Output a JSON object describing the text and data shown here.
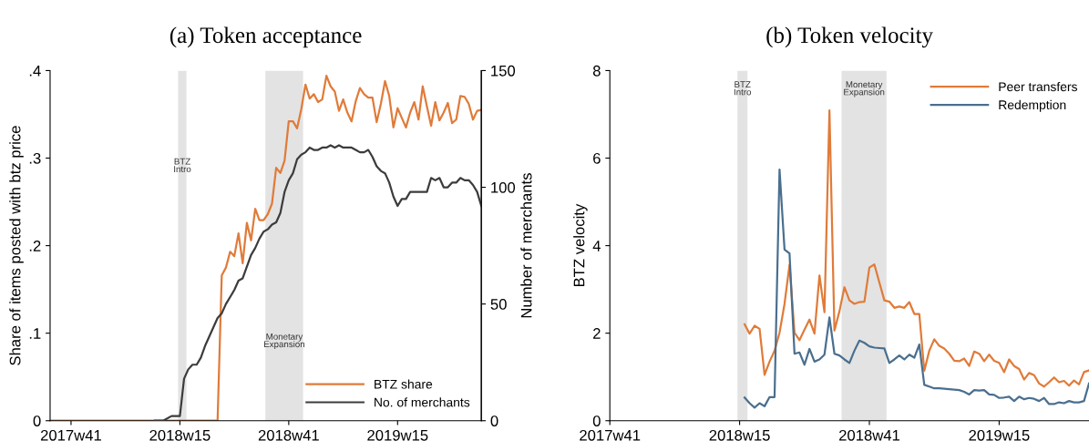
{
  "chart_data": [
    {
      "type": "line",
      "title": "(a) Token acceptance",
      "ylabel": "Share of items posted with btz price",
      "y2label": "Number of merchants",
      "xlim": [
        "2017-09-04",
        "2019-08-26"
      ],
      "xticks": [
        {
          "value": "2017-10-09",
          "label": "2017w41"
        },
        {
          "value": "2018-04-09",
          "label": "2018w15"
        },
        {
          "value": "2018-10-08",
          "label": "2018w41"
        },
        {
          "value": "2019-04-08",
          "label": "2019w15"
        }
      ],
      "ylim": [
        0,
        0.4
      ],
      "yticks": [
        0,
        {
          "value": 0.1,
          "label": ".1"
        },
        {
          "value": 0.2,
          "label": ".2"
        },
        {
          "value": 0.3,
          "label": ".3"
        },
        {
          "value": 0.4,
          "label": ".4"
        }
      ],
      "y2lim": [
        0,
        150
      ],
      "y2ticks": [
        0,
        50,
        100,
        150
      ],
      "legend": "bottom right",
      "bands": [
        {
          "axis": "x",
          "from": "2018-04-06",
          "to": "2018-04-20",
          "color": "#e3e3e3",
          "label": "BTZ\nIntro"
        },
        {
          "axis": "x",
          "from": "2018-08-30",
          "to": "2018-11-01",
          "color": "#e3e3e3",
          "label": "Monetary\nExpansion"
        }
      ],
      "series": [
        {
          "name": "BTZ share",
          "color": "#e07b39",
          "x": [
            "2017-09-04",
            "2018-06-11",
            "2018-06-18",
            "2018-06-25",
            "2018-07-02",
            "2018-07-09",
            "2018-07-16",
            "2018-07-23",
            "2018-07-30",
            "2018-08-06",
            "2018-08-13",
            "2018-08-20",
            "2018-08-27",
            "2018-09-03",
            "2018-09-10",
            "2018-09-17",
            "2018-09-24",
            "2018-10-01",
            "2018-10-08",
            "2018-10-15",
            "2018-10-22",
            "2018-10-29",
            "2018-11-05",
            "2018-11-12",
            "2018-11-19",
            "2018-11-26",
            "2018-12-03",
            "2018-12-10",
            "2018-12-17",
            "2018-12-24",
            "2018-12-31",
            "2019-01-07",
            "2019-01-14",
            "2019-01-21",
            "2019-01-28",
            "2019-02-04",
            "2019-02-11",
            "2019-02-18",
            "2019-02-25",
            "2019-03-04",
            "2019-03-11",
            "2019-03-18",
            "2019-03-25",
            "2019-04-01",
            "2019-04-08",
            "2019-04-15",
            "2019-04-22",
            "2019-04-29",
            "2019-05-06",
            "2019-05-13",
            "2019-05-20",
            "2019-05-27",
            "2019-06-03",
            "2019-06-10",
            "2019-06-17",
            "2019-06-24",
            "2019-07-01",
            "2019-07-08",
            "2019-07-15",
            "2019-07-22",
            "2019-07-29",
            "2019-08-05",
            "2019-08-12",
            "2019-08-19",
            "2019-08-26"
          ],
          "values": [
            0,
            0,
            0.166,
            0.175,
            0.193,
            0.188,
            0.214,
            0.18,
            0.226,
            0.206,
            0.242,
            0.229,
            0.229,
            0.236,
            0.248,
            0.289,
            0.283,
            0.297,
            0.342,
            0.342,
            0.334,
            0.356,
            0.384,
            0.368,
            0.373,
            0.364,
            0.367,
            0.394,
            0.382,
            0.376,
            0.354,
            0.367,
            0.352,
            0.342,
            0.365,
            0.38,
            0.373,
            0.369,
            0.369,
            0.341,
            0.362,
            0.388,
            0.371,
            0.335,
            0.357,
            0.346,
            0.335,
            0.352,
            0.364,
            0.344,
            0.382,
            0.359,
            0.337,
            0.364,
            0.343,
            0.352,
            0.363,
            0.34,
            0.344,
            0.371,
            0.37,
            0.362,
            0.344,
            0.354,
            0.355
          ]
        },
        {
          "name": "No. of merchants",
          "color": "#3c3c3c",
          "axis": "y2",
          "x": [
            "2018-02-26",
            "2018-03-12",
            "2018-03-26",
            "2018-04-09",
            "2018-04-16",
            "2018-04-23",
            "2018-04-30",
            "2018-05-07",
            "2018-05-14",
            "2018-05-21",
            "2018-05-28",
            "2018-06-04",
            "2018-06-11",
            "2018-06-18",
            "2018-06-25",
            "2018-07-02",
            "2018-07-09",
            "2018-07-16",
            "2018-07-23",
            "2018-07-30",
            "2018-08-06",
            "2018-08-13",
            "2018-08-20",
            "2018-08-27",
            "2018-09-03",
            "2018-09-10",
            "2018-09-17",
            "2018-09-24",
            "2018-10-01",
            "2018-10-08",
            "2018-10-15",
            "2018-10-22",
            "2018-10-29",
            "2018-11-05",
            "2018-11-12",
            "2018-11-19",
            "2018-11-26",
            "2018-12-03",
            "2018-12-10",
            "2018-12-17",
            "2018-12-24",
            "2018-12-31",
            "2019-01-07",
            "2019-01-14",
            "2019-01-21",
            "2019-01-28",
            "2019-02-04",
            "2019-02-11",
            "2019-02-18",
            "2019-02-25",
            "2019-03-04",
            "2019-03-11",
            "2019-03-18",
            "2019-03-25",
            "2019-04-01",
            "2019-04-08",
            "2019-04-15",
            "2019-04-22",
            "2019-04-29",
            "2019-05-06",
            "2019-05-13",
            "2019-05-20",
            "2019-05-27",
            "2019-06-03",
            "2019-06-10",
            "2019-06-17",
            "2019-06-24",
            "2019-07-01",
            "2019-07-08",
            "2019-07-15",
            "2019-07-22",
            "2019-07-29",
            "2019-08-05",
            "2019-08-12",
            "2019-08-19",
            "2019-08-26"
          ],
          "values": [
            0,
            0,
            2,
            2,
            18,
            22,
            24,
            24,
            27,
            32,
            36,
            40,
            44,
            46,
            50,
            53,
            56,
            60,
            61,
            66,
            71,
            74,
            78,
            81,
            82,
            84,
            85,
            89,
            98,
            103,
            106,
            112,
            114,
            115,
            117,
            116,
            116,
            117,
            117,
            118,
            117,
            118,
            117,
            117,
            117,
            116,
            115,
            115,
            116,
            113,
            109,
            107,
            106,
            102,
            96,
            92,
            95,
            95,
            98,
            98,
            98,
            98,
            98,
            104,
            103,
            104,
            100,
            100,
            102,
            102,
            104,
            103,
            103,
            101,
            98,
            92
          ]
        }
      ]
    },
    {
      "type": "line",
      "title": "(b) Token velocity",
      "ylabel": "BTZ velocity",
      "xlim": [
        "2017-10-09",
        "2019-08-12"
      ],
      "xticks": [
        {
          "value": "2017-10-09",
          "label": "2017w41"
        },
        {
          "value": "2018-04-09",
          "label": "2018w15"
        },
        {
          "value": "2018-10-08",
          "label": "2018w41"
        },
        {
          "value": "2019-04-08",
          "label": "2019w15"
        }
      ],
      "ylim": [
        0,
        8
      ],
      "yticks": [
        0,
        2,
        4,
        6,
        8
      ],
      "legend": "top right",
      "bands": [
        {
          "axis": "x",
          "from": "2018-04-06",
          "to": "2018-04-20",
          "color": "#e3e3e3",
          "label": "BTZ\nIntro"
        },
        {
          "axis": "x",
          "from": "2018-08-30",
          "to": "2018-11-01",
          "color": "#e3e3e3",
          "label": "Monetary\nExpansion"
        }
      ],
      "series": [
        {
          "name": "Peer transfers",
          "color": "#e07b39",
          "x": [
            "2018-04-16",
            "2018-04-23",
            "2018-04-30",
            "2018-05-07",
            "2018-05-14",
            "2018-05-21",
            "2018-05-28",
            "2018-06-04",
            "2018-06-11",
            "2018-06-18",
            "2018-06-25",
            "2018-07-02",
            "2018-07-09",
            "2018-07-16",
            "2018-07-23",
            "2018-07-30",
            "2018-08-06",
            "2018-08-13",
            "2018-08-20",
            "2018-08-27",
            "2018-09-03",
            "2018-09-10",
            "2018-09-17",
            "2018-09-24",
            "2018-10-01",
            "2018-10-08",
            "2018-10-15",
            "2018-10-22",
            "2018-10-29",
            "2018-11-05",
            "2018-11-12",
            "2018-11-19",
            "2018-11-26",
            "2018-12-03",
            "2018-12-10",
            "2018-12-17",
            "2018-12-24",
            "2018-12-31",
            "2019-01-07",
            "2019-01-14",
            "2019-01-21",
            "2019-01-28",
            "2019-02-04",
            "2019-02-11",
            "2019-02-18",
            "2019-02-25",
            "2019-03-04",
            "2019-03-11",
            "2019-03-18",
            "2019-03-25",
            "2019-04-01",
            "2019-04-08",
            "2019-04-15",
            "2019-04-22",
            "2019-04-29",
            "2019-05-06",
            "2019-05-13",
            "2019-05-20",
            "2019-05-27",
            "2019-06-03",
            "2019-06-10",
            "2019-06-17",
            "2019-06-24",
            "2019-07-01",
            "2019-07-08",
            "2019-07-15",
            "2019-07-22",
            "2019-07-29",
            "2019-08-05",
            "2019-08-12"
          ],
          "values": [
            2.2,
            1.99,
            2.17,
            2.1,
            1.05,
            1.35,
            1.6,
            2.01,
            2.67,
            3.56,
            2.01,
            1.84,
            2.08,
            2.31,
            1.99,
            3.32,
            2.48,
            7.09,
            2.06,
            2.5,
            3.05,
            2.75,
            2.67,
            2.71,
            2.72,
            3.5,
            3.57,
            3.16,
            2.75,
            2.72,
            2.58,
            2.61,
            2.58,
            2.71,
            2.44,
            2.44,
            1.14,
            1.6,
            1.86,
            1.71,
            1.65,
            1.53,
            1.37,
            1.36,
            1.42,
            1.25,
            1.58,
            1.53,
            1.36,
            1.51,
            1.37,
            1.32,
            1.11,
            1.4,
            1.25,
            1.18,
            0.94,
            1.09,
            1.04,
            0.85,
            0.78,
            0.88,
            0.99,
            0.88,
            0.91,
            0.8,
            0.92,
            0.83,
            1.11,
            1.15
          ]
        },
        {
          "name": "Redemption",
          "color": "#4a6f8f",
          "x": [
            "2018-04-16",
            "2018-04-23",
            "2018-04-30",
            "2018-05-07",
            "2018-05-14",
            "2018-05-21",
            "2018-05-28",
            "2018-06-04",
            "2018-06-11",
            "2018-06-18",
            "2018-06-25",
            "2018-07-02",
            "2018-07-09",
            "2018-07-16",
            "2018-07-23",
            "2018-07-30",
            "2018-08-06",
            "2018-08-13",
            "2018-08-20",
            "2018-08-27",
            "2018-09-03",
            "2018-09-10",
            "2018-09-17",
            "2018-09-24",
            "2018-10-01",
            "2018-10-08",
            "2018-10-15",
            "2018-10-22",
            "2018-10-29",
            "2018-11-05",
            "2018-11-12",
            "2018-11-19",
            "2018-11-26",
            "2018-12-03",
            "2018-12-10",
            "2018-12-17",
            "2018-12-24",
            "2018-12-31",
            "2019-01-07",
            "2019-01-14",
            "2019-01-21",
            "2019-01-28",
            "2019-02-04",
            "2019-02-11",
            "2019-02-18",
            "2019-02-25",
            "2019-03-04",
            "2019-03-11",
            "2019-03-18",
            "2019-03-25",
            "2019-04-01",
            "2019-04-08",
            "2019-04-15",
            "2019-04-22",
            "2019-04-29",
            "2019-05-06",
            "2019-05-13",
            "2019-05-20",
            "2019-05-27",
            "2019-06-03",
            "2019-06-10",
            "2019-06-17",
            "2019-06-24",
            "2019-07-01",
            "2019-07-08",
            "2019-07-15",
            "2019-07-22",
            "2019-07-29",
            "2019-08-05",
            "2019-08-12"
          ],
          "values": [
            0.53,
            0.4,
            0.3,
            0.4,
            0.33,
            0.54,
            0.54,
            5.74,
            3.91,
            3.82,
            1.53,
            1.56,
            1.28,
            1.64,
            1.35,
            1.4,
            1.51,
            2.36,
            1.53,
            1.49,
            1.4,
            1.32,
            1.6,
            1.83,
            1.78,
            1.7,
            1.67,
            1.66,
            1.65,
            1.32,
            1.4,
            1.49,
            1.4,
            1.51,
            1.44,
            1.74,
            0.82,
            0.78,
            0.74,
            0.74,
            0.73,
            0.72,
            0.71,
            0.7,
            0.66,
            0.6,
            0.7,
            0.69,
            0.7,
            0.6,
            0.59,
            0.52,
            0.53,
            0.55,
            0.45,
            0.55,
            0.49,
            0.52,
            0.5,
            0.45,
            0.52,
            0.38,
            0.38,
            0.42,
            0.4,
            0.45,
            0.42,
            0.42,
            0.45,
            0.85
          ]
        }
      ]
    }
  ]
}
